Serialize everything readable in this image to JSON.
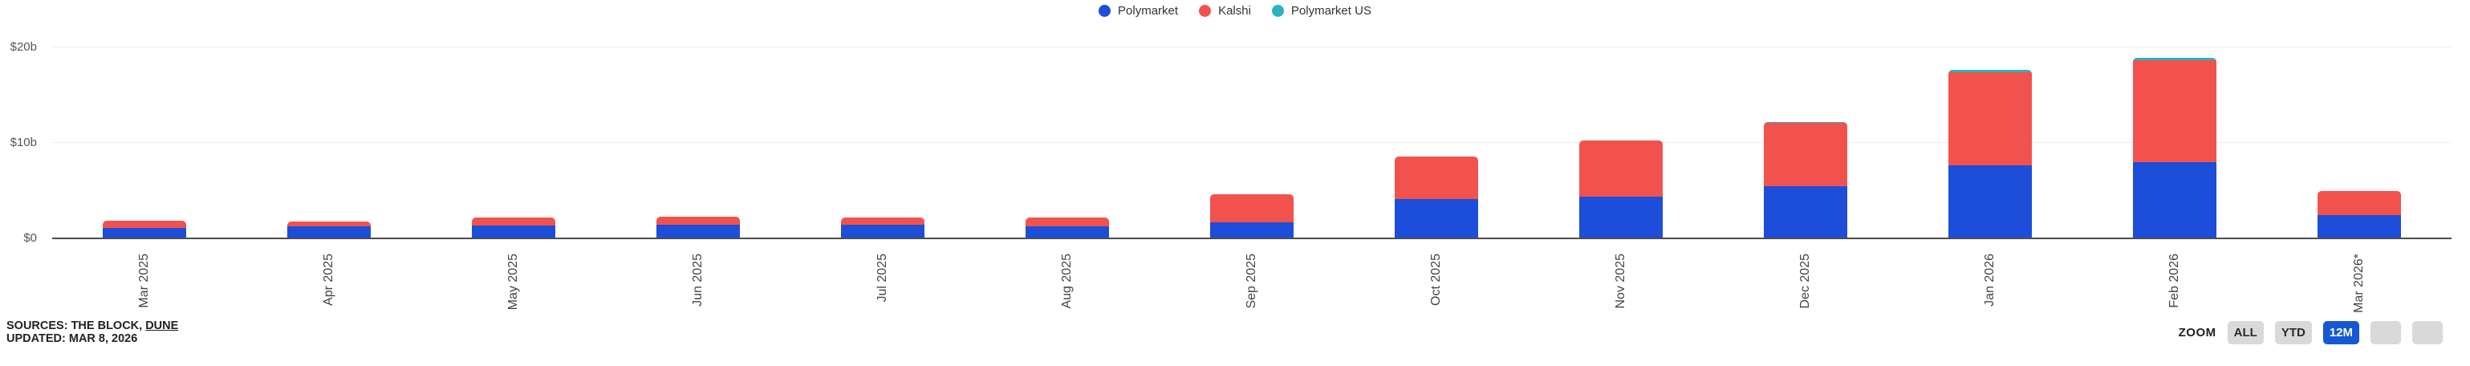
{
  "chart_data": {
    "type": "bar",
    "stacked": true,
    "title": "",
    "xlabel": "",
    "ylabel": "",
    "ylim": [
      0,
      25
    ],
    "grid": "horizontal",
    "legend_position": "top-center",
    "unit": "$ billions",
    "categories": [
      "Mar 2025",
      "Apr 2025",
      "May 2025",
      "Jun 2025",
      "Jul 2025",
      "Aug 2025",
      "Sep 2025",
      "Oct 2025",
      "Nov 2025",
      "Dec 2025",
      "Jan 2026",
      "Feb 2026",
      "Mar 2026*"
    ],
    "series": [
      {
        "name": "Polymarket",
        "color": "#1d4ed9",
        "values": [
          1.1,
          1.3,
          1.35,
          1.45,
          1.45,
          1.3,
          1.65,
          4.1,
          4.35,
          5.45,
          7.65,
          7.95,
          2.45
        ]
      },
      {
        "name": "Kalshi",
        "color": "#f2524e",
        "values": [
          0.75,
          0.5,
          0.8,
          0.85,
          0.7,
          0.9,
          2.95,
          4.45,
          5.85,
          6.65,
          9.7,
          10.65,
          2.5
        ]
      },
      {
        "name": "Polymarket US",
        "color": "#2ab3bf",
        "values": [
          0,
          0,
          0,
          0,
          0,
          0,
          0,
          0,
          0,
          0.1,
          0.3,
          0.3,
          0
        ]
      }
    ],
    "y_ticks": [
      {
        "value": 0,
        "label": "$0"
      },
      {
        "value": 10,
        "label": "$10b"
      },
      {
        "value": 20,
        "label": "$20b"
      }
    ]
  },
  "footer": {
    "sources_prefix": "SOURCES: THE BLOCK, ",
    "sources_link": "DUNE",
    "updated": "UPDATED: MAR 8, 2026"
  },
  "zoom_controls": {
    "label": "ZOOM",
    "buttons": [
      {
        "label": "ALL",
        "active": false
      },
      {
        "label": "YTD",
        "active": false
      },
      {
        "label": "12M",
        "active": true
      },
      {
        "label": "",
        "active": false
      },
      {
        "label": "",
        "active": false
      }
    ]
  },
  "colors": {
    "active_button": "#1658d3",
    "inactive_button": "#d9d9d9",
    "axis_line": "#4d4d4d",
    "gridline": "#ececec"
  }
}
